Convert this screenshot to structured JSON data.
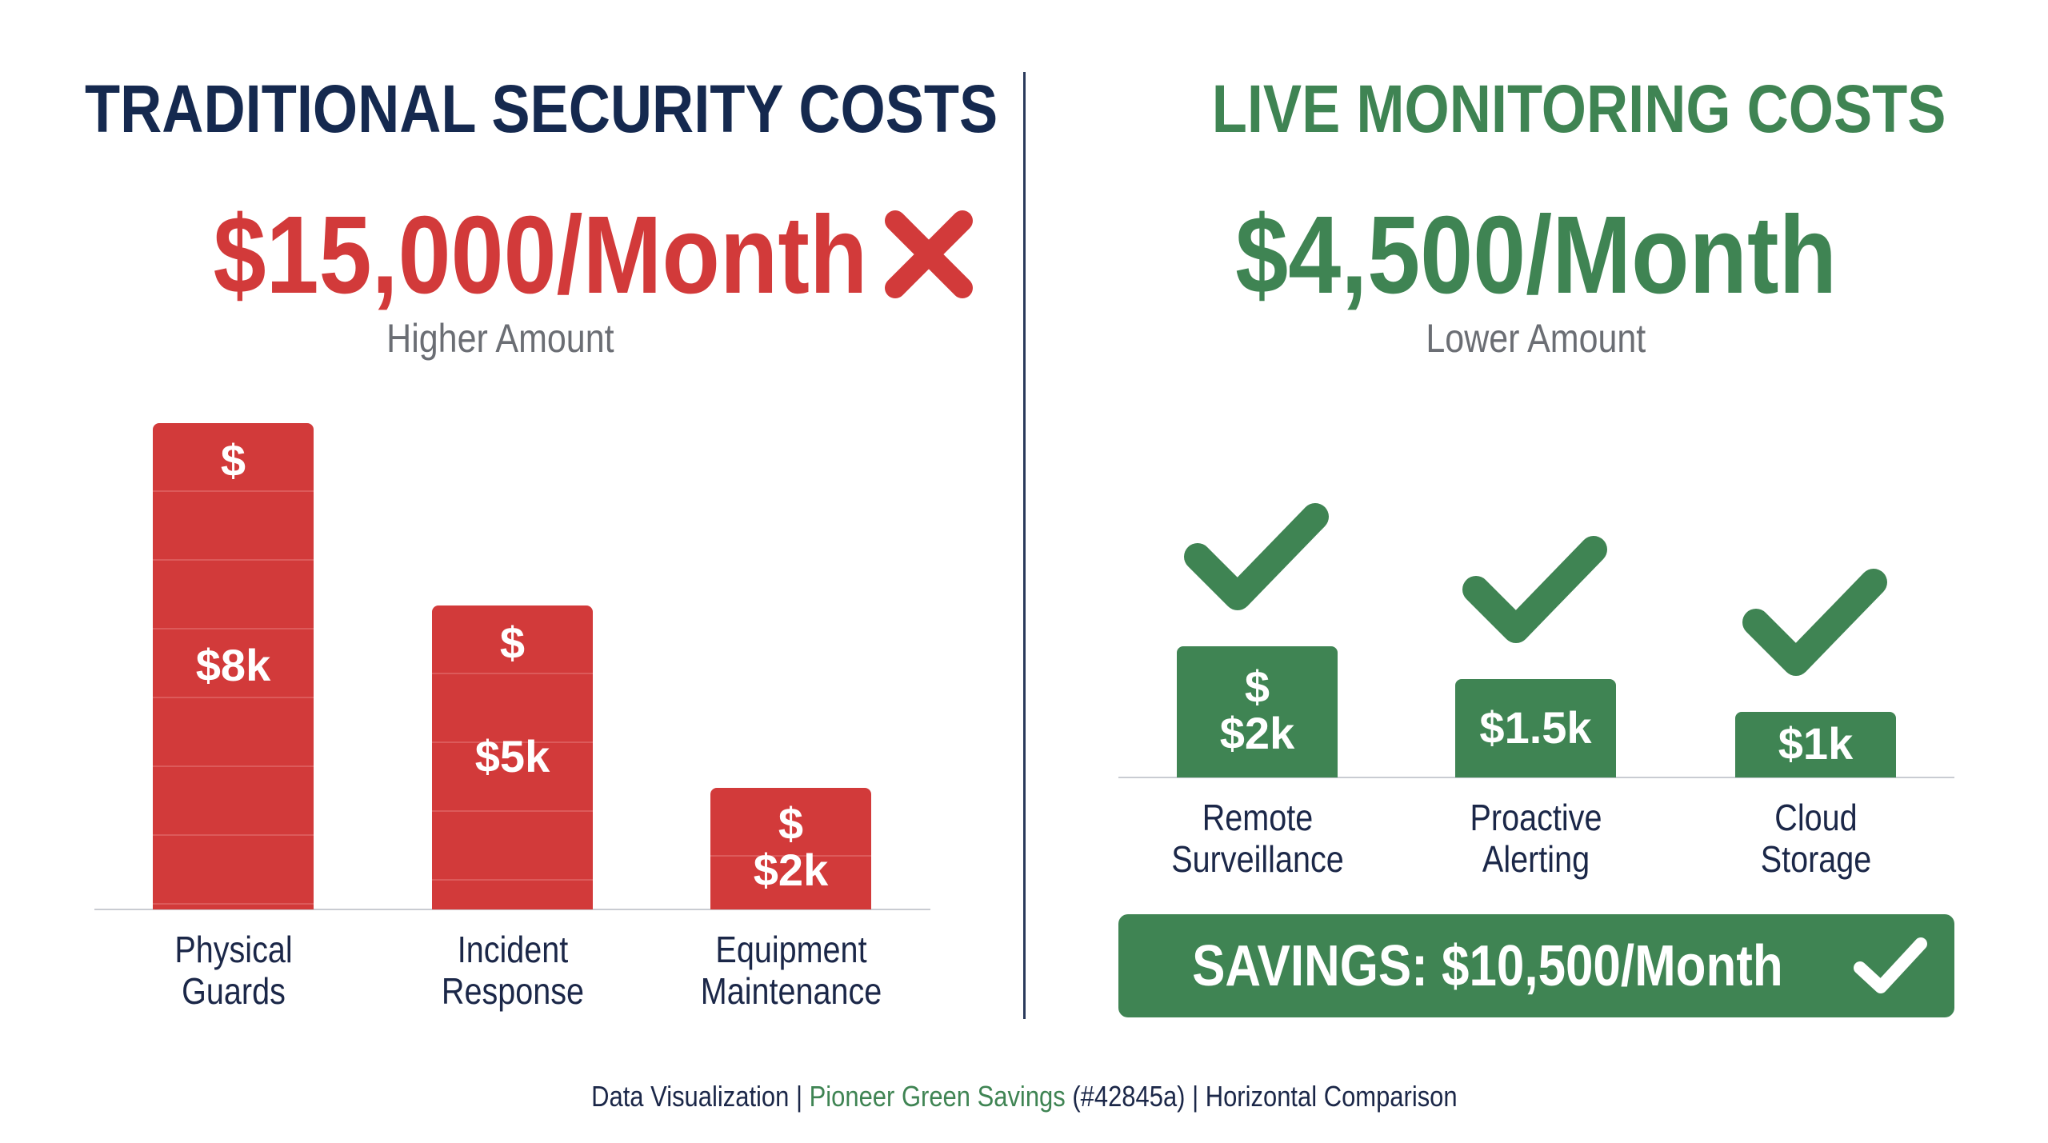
{
  "left": {
    "title": "TRADITIONAL SECURITY COSTS",
    "amount": "$15,000/Month",
    "amount_icon": "x-mark-icon",
    "subtitle": "Higher Amount",
    "color": "#d23a3a"
  },
  "right": {
    "title": "LIVE MONITORING COSTS",
    "amount": "$4,500/Month",
    "subtitle": "Lower Amount",
    "color": "#3f8453"
  },
  "savings": {
    "label": "SAVINGS: $10,500/Month",
    "icon": "checkmark-icon"
  },
  "footer": {
    "part1": "Data Visualization | ",
    "part2": "Pioneer Green Savings",
    "part3": " (#42845a) | Horizontal Comparison"
  },
  "chart_data": [
    {
      "type": "bar",
      "title": "TRADITIONAL SECURITY COSTS",
      "categories": [
        "Physical Guards",
        "Incident Response",
        "Equipment Maintenance"
      ],
      "category_lines": [
        [
          "Physical",
          "Guards"
        ],
        [
          "Incident",
          "Response"
        ],
        [
          "Equipment",
          "Maintenance"
        ]
      ],
      "values": [
        8000,
        5000,
        2000
      ],
      "data_labels": [
        "$8k",
        "$5k",
        "$2k"
      ],
      "dollar_symbol": "$",
      "show_dollar": [
        true,
        true,
        true
      ],
      "color": "#d23a3a",
      "grid": false
    },
    {
      "type": "bar",
      "title": "LIVE MONITORING COSTS",
      "categories": [
        "Remote Surveillance",
        "Proactive Alerting",
        "Cloud Storage"
      ],
      "category_lines": [
        [
          "Remote",
          "Surveillance"
        ],
        [
          "Proactive",
          "Alerting"
        ],
        [
          "Cloud",
          "Storage"
        ]
      ],
      "values": [
        2000,
        1500,
        1000
      ],
      "data_labels": [
        "$2k",
        "$1.5k",
        "$1k"
      ],
      "dollar_symbol": "$",
      "show_dollar": [
        true,
        false,
        false
      ],
      "bar_icon": "checkmark-icon",
      "color": "#3f8453",
      "grid": false
    }
  ]
}
